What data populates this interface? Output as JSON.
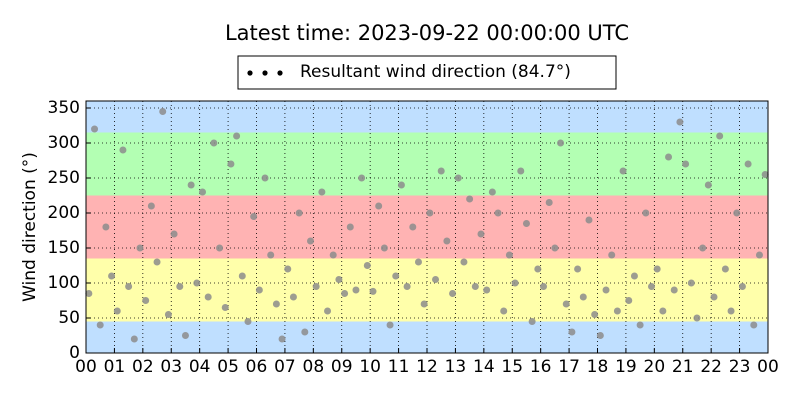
{
  "chart_data": {
    "type": "scatter",
    "title": "Latest time: 2023-09-22 00:00:00 UTC",
    "y_label": "Wind direction (°)",
    "xlim": [
      0,
      24
    ],
    "ylim": [
      0,
      360
    ],
    "xticks": [
      {
        "value": 0,
        "label": "00"
      },
      {
        "value": 1,
        "label": "01"
      },
      {
        "value": 2,
        "label": "02"
      },
      {
        "value": 3,
        "label": "03"
      },
      {
        "value": 4,
        "label": "04"
      },
      {
        "value": 5,
        "label": "05"
      },
      {
        "value": 6,
        "label": "06"
      },
      {
        "value": 7,
        "label": "07"
      },
      {
        "value": 8,
        "label": "08"
      },
      {
        "value": 9,
        "label": "09"
      },
      {
        "value": 10,
        "label": "10"
      },
      {
        "value": 11,
        "label": "11"
      },
      {
        "value": 12,
        "label": "12"
      },
      {
        "value": 13,
        "label": "13"
      },
      {
        "value": 14,
        "label": "14"
      },
      {
        "value": 15,
        "label": "15"
      },
      {
        "value": 16,
        "label": "16"
      },
      {
        "value": 17,
        "label": "17"
      },
      {
        "value": 18,
        "label": "18"
      },
      {
        "value": 19,
        "label": "19"
      },
      {
        "value": 20,
        "label": "20"
      },
      {
        "value": 21,
        "label": "21"
      },
      {
        "value": 22,
        "label": "22"
      },
      {
        "value": 23,
        "label": "23"
      },
      {
        "value": 24,
        "label": "00"
      }
    ],
    "yticks": [
      0,
      50,
      100,
      150,
      200,
      250,
      300,
      350
    ],
    "grid": true,
    "bands": [
      {
        "from": 0,
        "to": 45,
        "color": "#bfdfff"
      },
      {
        "from": 45,
        "to": 135,
        "color": "#ffffaa"
      },
      {
        "from": 135,
        "to": 225,
        "color": "#ffb3b3"
      },
      {
        "from": 225,
        "to": 315,
        "color": "#b3ffb3"
      },
      {
        "from": 315,
        "to": 360,
        "color": "#bfdfff"
      }
    ],
    "series": [
      {
        "name": "Resultant wind direction (84.7°)",
        "color": "#8c8c8c",
        "x": [
          0.1,
          0.3,
          0.5,
          0.7,
          0.9,
          1.1,
          1.3,
          1.5,
          1.7,
          1.9,
          2.1,
          2.3,
          2.5,
          2.7,
          2.9,
          3.1,
          3.3,
          3.5,
          3.7,
          3.9,
          4.1,
          4.3,
          4.5,
          4.7,
          4.9,
          5.1,
          5.3,
          5.5,
          5.7,
          5.9,
          6.1,
          6.3,
          6.5,
          6.7,
          6.9,
          7.1,
          7.3,
          7.5,
          7.7,
          7.9,
          8.1,
          8.3,
          8.5,
          8.7,
          8.9,
          9.1,
          9.3,
          9.5,
          9.7,
          9.9,
          10.1,
          10.3,
          10.5,
          10.7,
          10.9,
          11.1,
          11.3,
          11.5,
          11.7,
          11.9,
          12.1,
          12.3,
          12.5,
          12.7,
          12.9,
          13.1,
          13.3,
          13.5,
          13.7,
          13.9,
          14.1,
          14.3,
          14.5,
          14.7,
          14.9,
          15.1,
          15.3,
          15.5,
          15.7,
          15.9,
          16.1,
          16.3,
          16.5,
          16.7,
          16.9,
          17.1,
          17.3,
          17.5,
          17.7,
          17.9,
          18.1,
          18.3,
          18.5,
          18.7,
          18.9,
          19.1,
          19.3,
          19.5,
          19.7,
          19.9,
          20.1,
          20.3,
          20.5,
          20.7,
          20.9,
          21.1,
          21.3,
          21.5,
          21.7,
          21.9,
          22.1,
          22.3,
          22.5,
          22.7,
          22.9,
          23.1,
          23.3,
          23.5,
          23.7,
          23.9
        ],
        "values": [
          85,
          320,
          40,
          180,
          110,
          60,
          290,
          95,
          20,
          150,
          75,
          210,
          130,
          345,
          55,
          170,
          95,
          25,
          240,
          100,
          230,
          80,
          300,
          150,
          65,
          270,
          310,
          110,
          45,
          195,
          90,
          250,
          140,
          70,
          20,
          120,
          80,
          200,
          30,
          160,
          95,
          230,
          60,
          140,
          105,
          85,
          180,
          90,
          250,
          125,
          88,
          210,
          150,
          40,
          110,
          240,
          95,
          180,
          130,
          70,
          200,
          105,
          260,
          160,
          85,
          250,
          130,
          220,
          95,
          170,
          90,
          230,
          200,
          60,
          140,
          100,
          260,
          185,
          45,
          120,
          95,
          215,
          150,
          300,
          70,
          30,
          120,
          80,
          190,
          55,
          25,
          90,
          140,
          60,
          260,
          75,
          110,
          40,
          200,
          95,
          120,
          60,
          280,
          90,
          330,
          270,
          100,
          50,
          150,
          240,
          80,
          310,
          120,
          60,
          200,
          95,
          270,
          40,
          140,
          255
        ]
      }
    ]
  }
}
